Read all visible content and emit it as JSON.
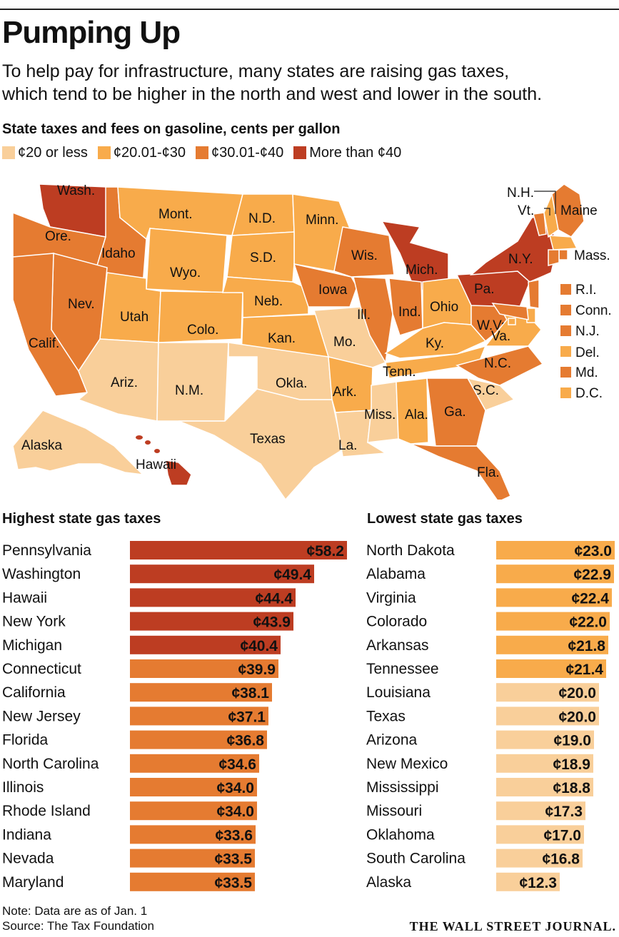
{
  "header": {
    "title": "Pumping Up",
    "subtitle_lines": [
      "To help pay for infrastructure, many states are raising gas taxes,",
      "which tend to be higher in the north and west and lower in the south."
    ]
  },
  "colors": {
    "tier1": "#f9cf9a",
    "tier2": "#f8ab4b",
    "tier3": "#e57b31",
    "tier4": "#bd3d22"
  },
  "chart_data": [
    {
      "type": "choropleth",
      "title": "State taxes and fees on gasoline, cents per gallon",
      "legend": [
        {
          "label": "¢20 or less",
          "tier": "tier1"
        },
        {
          "label": "¢20.01-¢30",
          "tier": "tier2"
        },
        {
          "label": "¢30.01-¢40",
          "tier": "tier3"
        },
        {
          "label": "More than ¢40",
          "tier": "tier4"
        }
      ],
      "states": [
        {
          "label": "Wash.",
          "tier": "tier4"
        },
        {
          "label": "Ore.",
          "tier": "tier3"
        },
        {
          "label": "Idaho",
          "tier": "tier3"
        },
        {
          "label": "Mont.",
          "tier": "tier2"
        },
        {
          "label": "N.D.",
          "tier": "tier2"
        },
        {
          "label": "Minn.",
          "tier": "tier2"
        },
        {
          "label": "Wyo.",
          "tier": "tier2"
        },
        {
          "label": "S.D.",
          "tier": "tier2"
        },
        {
          "label": "Wis.",
          "tier": "tier3"
        },
        {
          "label": "Mich.",
          "tier": "tier4"
        },
        {
          "label": "Nev.",
          "tier": "tier3"
        },
        {
          "label": "Utah",
          "tier": "tier2"
        },
        {
          "label": "Colo.",
          "tier": "tier2"
        },
        {
          "label": "Neb.",
          "tier": "tier2"
        },
        {
          "label": "Iowa",
          "tier": "tier3"
        },
        {
          "label": "Calif.",
          "tier": "tier3"
        },
        {
          "label": "Kan.",
          "tier": "tier2"
        },
        {
          "label": "Mo.",
          "tier": "tier1"
        },
        {
          "label": "Ill.",
          "tier": "tier3"
        },
        {
          "label": "Ind.",
          "tier": "tier3"
        },
        {
          "label": "Ohio",
          "tier": "tier2"
        },
        {
          "label": "Ky.",
          "tier": "tier2"
        },
        {
          "label": "W.Va.",
          "tier": "tier3"
        },
        {
          "label": "Va.",
          "tier": "tier2"
        },
        {
          "label": "Pa.",
          "tier": "tier4"
        },
        {
          "label": "N.Y.",
          "tier": "tier4"
        },
        {
          "label": "Vt.",
          "tier": "tier3"
        },
        {
          "label": "N.H.",
          "tier": "tier2"
        },
        {
          "label": "Maine",
          "tier": "tier3"
        },
        {
          "label": "Mass.",
          "tier": "tier2"
        },
        {
          "label": "R.I.",
          "tier": "tier3"
        },
        {
          "label": "Conn.",
          "tier": "tier3"
        },
        {
          "label": "N.J.",
          "tier": "tier3"
        },
        {
          "label": "Del.",
          "tier": "tier2"
        },
        {
          "label": "Md.",
          "tier": "tier3"
        },
        {
          "label": "D.C.",
          "tier": "tier2"
        },
        {
          "label": "Ariz.",
          "tier": "tier1"
        },
        {
          "label": "N.M.",
          "tier": "tier1"
        },
        {
          "label": "Okla.",
          "tier": "tier1"
        },
        {
          "label": "Ark.",
          "tier": "tier2"
        },
        {
          "label": "Tenn.",
          "tier": "tier2"
        },
        {
          "label": "N.C.",
          "tier": "tier3"
        },
        {
          "label": "S.C.",
          "tier": "tier1"
        },
        {
          "label": "Texas",
          "tier": "tier1"
        },
        {
          "label": "La.",
          "tier": "tier1"
        },
        {
          "label": "Miss.",
          "tier": "tier1"
        },
        {
          "label": "Ala.",
          "tier": "tier2"
        },
        {
          "label": "Ga.",
          "tier": "tier3"
        },
        {
          "label": "Fla.",
          "tier": "tier3"
        },
        {
          "label": "Alaska",
          "tier": "tier1"
        },
        {
          "label": "Hawaii",
          "tier": "tier4"
        }
      ]
    },
    {
      "type": "bar",
      "orientation": "horizontal",
      "title": "Highest state gas taxes",
      "value_prefix": "¢",
      "categories": [
        "Pennsylvania",
        "Washington",
        "Hawaii",
        "New York",
        "Michigan",
        "Connecticut",
        "California",
        "New Jersey",
        "Florida",
        "North Carolina",
        "Illinois",
        "Rhode Island",
        "Indiana",
        "Nevada",
        "Maryland"
      ],
      "values": [
        58.2,
        49.4,
        44.4,
        43.9,
        40.4,
        39.9,
        38.1,
        37.1,
        36.8,
        34.6,
        34.0,
        34.0,
        33.6,
        33.5,
        33.5
      ],
      "labels": [
        "¢58.2",
        "¢49.4",
        "¢44.4",
        "¢43.9",
        "¢40.4",
        "¢39.9",
        "¢38.1",
        "¢37.1",
        "¢36.8",
        "¢34.6",
        "¢34.0",
        "¢34.0",
        "¢33.6",
        "¢33.5",
        "¢33.5"
      ],
      "xlim": [
        0,
        58.2
      ]
    },
    {
      "type": "bar",
      "orientation": "horizontal",
      "title": "Lowest state gas taxes",
      "value_prefix": "¢",
      "categories": [
        "North Dakota",
        "Alabama",
        "Virginia",
        "Colorado",
        "Arkansas",
        "Tennessee",
        "Louisiana",
        "Texas",
        "Arizona",
        "New Mexico",
        "Mississippi",
        "Missouri",
        "Oklahoma",
        "South Carolina",
        "Alaska"
      ],
      "values": [
        23.0,
        22.9,
        22.4,
        22.0,
        21.8,
        21.4,
        20.0,
        20.0,
        19.0,
        18.9,
        18.8,
        17.3,
        17.0,
        16.8,
        12.3
      ],
      "labels": [
        "¢23.0",
        "¢22.9",
        "¢22.4",
        "¢22.0",
        "¢21.8",
        "¢21.4",
        "¢20.0",
        "¢20.0",
        "¢19.0",
        "¢18.9",
        "¢18.8",
        "¢17.3",
        "¢17.0",
        "¢16.8",
        "¢12.3"
      ],
      "xlim": [
        0,
        23.0
      ]
    }
  ],
  "footer": {
    "note": "Note: Data are as of Jan. 1",
    "source": "Source: The Tax Foundation",
    "brand": "THE WALL STREET JOURNAL."
  }
}
